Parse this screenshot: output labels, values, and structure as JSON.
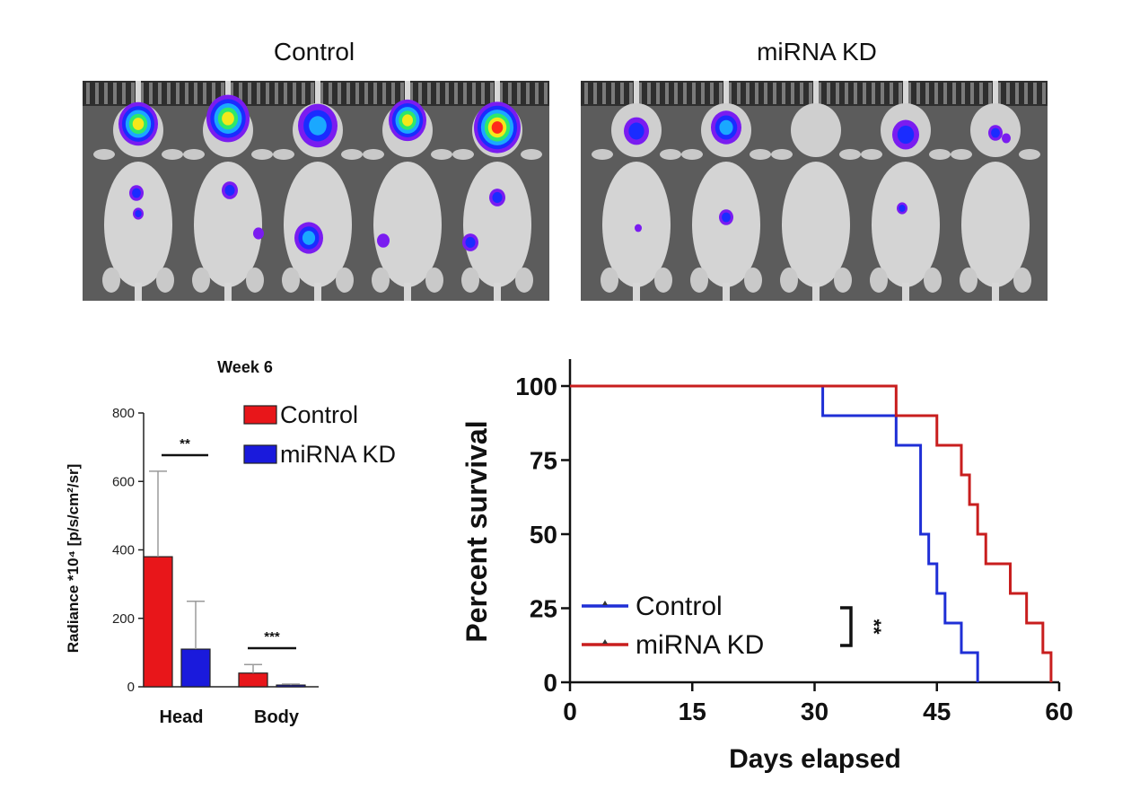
{
  "panels": {
    "control_label": "Control",
    "kd_label": "miRNA KD"
  },
  "colors": {
    "control": "#e8161a",
    "kd": "#1a1adc",
    "km_control": "#1f2fd6",
    "km_kd": "#c81e1e"
  },
  "chart_data": [
    {
      "type": "bar",
      "title": "Week 6",
      "ylabel": "Radiance *10⁴ [p/s/cm²/sr]",
      "categories": [
        "Head",
        "Body"
      ],
      "series": [
        {
          "name": "Control",
          "values": [
            380,
            40
          ],
          "errors": [
            250,
            25
          ]
        },
        {
          "name": "miRNA KD",
          "values": [
            110,
            5
          ],
          "errors": [
            140,
            3
          ]
        }
      ],
      "yticks": [
        "0",
        "200",
        "400",
        "600",
        "800"
      ],
      "ylim": [
        0,
        800
      ],
      "significance": [
        "**",
        "***"
      ],
      "legend": "top-right"
    },
    {
      "type": "line",
      "xlabel": "Days elapsed",
      "ylabel": "Percent survival",
      "xlim": [
        0,
        60
      ],
      "ylim": [
        0,
        100
      ],
      "xticks": [
        "0",
        "15",
        "30",
        "45",
        "60"
      ],
      "yticks": [
        "0",
        "25",
        "50",
        "75",
        "100"
      ],
      "series": [
        {
          "name": "Control",
          "x": [
            0,
            31,
            40,
            43,
            44,
            45,
            46,
            48,
            50
          ],
          "y": [
            100,
            90,
            80,
            50,
            40,
            30,
            20,
            10,
            0
          ]
        },
        {
          "name": "miRNA KD",
          "x": [
            0,
            40,
            45,
            48,
            49,
            50,
            51,
            54,
            56,
            58,
            59
          ],
          "y": [
            100,
            90,
            80,
            70,
            60,
            50,
            40,
            30,
            20,
            10,
            0
          ]
        }
      ],
      "significance": "**",
      "legend": "bottom-left"
    }
  ]
}
